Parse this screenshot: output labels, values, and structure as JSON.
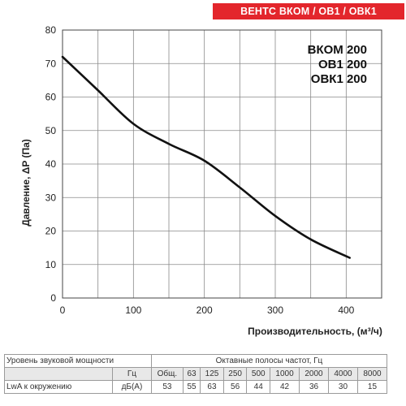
{
  "header": {
    "title": "ВЕНТС ВКОМ / ОВ1 / ОВК1"
  },
  "models": [
    "ВКОМ 200",
    "ОВ1 200",
    "ОВК1 200"
  ],
  "chart_data": {
    "type": "line",
    "xlabel": "Производительность, (м³/ч)",
    "ylabel": "Давление, ΔP (Па)",
    "xlim": [
      0,
      450
    ],
    "ylim": [
      0,
      80
    ],
    "xticks": [
      0,
      100,
      200,
      300,
      400
    ],
    "yticks": [
      0,
      10,
      20,
      30,
      40,
      50,
      60,
      70,
      80
    ],
    "grid": true,
    "series": [
      {
        "values": [
          {
            "x": 0,
            "y": 72
          },
          {
            "x": 50,
            "y": 62
          },
          {
            "x": 100,
            "y": 52
          },
          {
            "x": 150,
            "y": 46
          },
          {
            "x": 200,
            "y": 41
          },
          {
            "x": 250,
            "y": 33
          },
          {
            "x": 300,
            "y": 24.5
          },
          {
            "x": 350,
            "y": 17.5
          },
          {
            "x": 405,
            "y": 12
          }
        ],
        "color": "#111111"
      }
    ]
  },
  "sound_table": {
    "row1_label": "Уровень звуковой мощности",
    "row1_bands": "Октавные полосы частот, Гц",
    "row2_unit": "Гц",
    "row3_label": "LwA к окружению",
    "row3_unit": "дБ(А)",
    "freqs": [
      "Общ.",
      "63",
      "125",
      "250",
      "500",
      "1000",
      "2000",
      "4000",
      "8000"
    ],
    "values": [
      "53",
      "55",
      "63",
      "56",
      "44",
      "42",
      "36",
      "30",
      "15"
    ]
  }
}
